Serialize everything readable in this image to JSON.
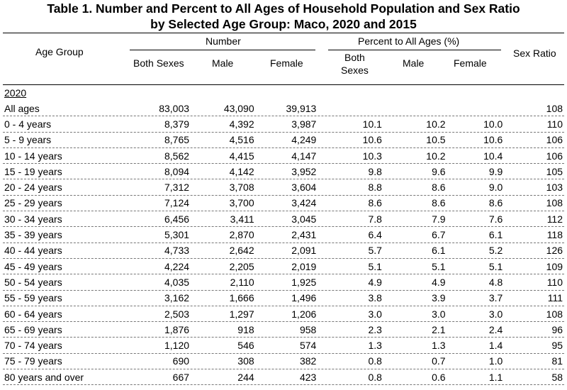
{
  "title": {
    "line1": "Table 1. Number and Percent to All Ages of Household Population and Sex Ratio",
    "line2": "by Selected Age Group: Maco, 2020 and 2015"
  },
  "headers": {
    "age_group": "Age Group",
    "number": "Number",
    "percent": "Percent to All Ages (%)",
    "both_sexes": "Both Sexes",
    "male": "Male",
    "female": "Female",
    "pct_both_line1": "Both",
    "pct_both_line2": "Sexes",
    "pct_male": "Male",
    "pct_female": "Female",
    "sex_ratio": "Sex Ratio"
  },
  "year_label": "2020",
  "rows": [
    {
      "age": "All ages",
      "both": "83,003",
      "male": "43,090",
      "female": "39,913",
      "pb": "",
      "pm": "",
      "pf": "",
      "sr": "108"
    },
    {
      "age": "0 - 4 years",
      "both": "8,379",
      "male": "4,392",
      "female": "3,987",
      "pb": "10.1",
      "pm": "10.2",
      "pf": "10.0",
      "sr": "110"
    },
    {
      "age": "5 - 9 years",
      "both": "8,765",
      "male": "4,516",
      "female": "4,249",
      "pb": "10.6",
      "pm": "10.5",
      "pf": "10.6",
      "sr": "106"
    },
    {
      "age": "10 - 14 years",
      "both": "8,562",
      "male": "4,415",
      "female": "4,147",
      "pb": "10.3",
      "pm": "10.2",
      "pf": "10.4",
      "sr": "106"
    },
    {
      "age": "15 - 19 years",
      "both": "8,094",
      "male": "4,142",
      "female": "3,952",
      "pb": "9.8",
      "pm": "9.6",
      "pf": "9.9",
      "sr": "105"
    },
    {
      "age": "20 - 24 years",
      "both": "7,312",
      "male": "3,708",
      "female": "3,604",
      "pb": "8.8",
      "pm": "8.6",
      "pf": "9.0",
      "sr": "103"
    },
    {
      "age": "25 - 29 years",
      "both": "7,124",
      "male": "3,700",
      "female": "3,424",
      "pb": "8.6",
      "pm": "8.6",
      "pf": "8.6",
      "sr": "108"
    },
    {
      "age": "30 - 34 years",
      "both": "6,456",
      "male": "3,411",
      "female": "3,045",
      "pb": "7.8",
      "pm": "7.9",
      "pf": "7.6",
      "sr": "112"
    },
    {
      "age": "35 - 39 years",
      "both": "5,301",
      "male": "2,870",
      "female": "2,431",
      "pb": "6.4",
      "pm": "6.7",
      "pf": "6.1",
      "sr": "118"
    },
    {
      "age": "40 - 44 years",
      "both": "4,733",
      "male": "2,642",
      "female": "2,091",
      "pb": "5.7",
      "pm": "6.1",
      "pf": "5.2",
      "sr": "126"
    },
    {
      "age": "45 - 49 years",
      "both": "4,224",
      "male": "2,205",
      "female": "2,019",
      "pb": "5.1",
      "pm": "5.1",
      "pf": "5.1",
      "sr": "109"
    },
    {
      "age": "50 - 54 years",
      "both": "4,035",
      "male": "2,110",
      "female": "1,925",
      "pb": "4.9",
      "pm": "4.9",
      "pf": "4.8",
      "sr": "110"
    },
    {
      "age": "55 - 59 years",
      "both": "3,162",
      "male": "1,666",
      "female": "1,496",
      "pb": "3.8",
      "pm": "3.9",
      "pf": "3.7",
      "sr": "111"
    },
    {
      "age": "60 - 64 years",
      "both": "2,503",
      "male": "1,297",
      "female": "1,206",
      "pb": "3.0",
      "pm": "3.0",
      "pf": "3.0",
      "sr": "108"
    },
    {
      "age": "65 - 69 years",
      "both": "1,876",
      "male": "918",
      "female": "958",
      "pb": "2.3",
      "pm": "2.1",
      "pf": "2.4",
      "sr": "96"
    },
    {
      "age": "70 - 74 years",
      "both": "1,120",
      "male": "546",
      "female": "574",
      "pb": "1.3",
      "pm": "1.3",
      "pf": "1.4",
      "sr": "95"
    },
    {
      "age": "75 - 79 years",
      "both": "690",
      "male": "308",
      "female": "382",
      "pb": "0.8",
      "pm": "0.7",
      "pf": "1.0",
      "sr": "81"
    },
    {
      "age": "80 years and over",
      "both": "667",
      "male": "244",
      "female": "423",
      "pb": "0.8",
      "pm": "0.6",
      "pf": "1.1",
      "sr": "58"
    }
  ]
}
